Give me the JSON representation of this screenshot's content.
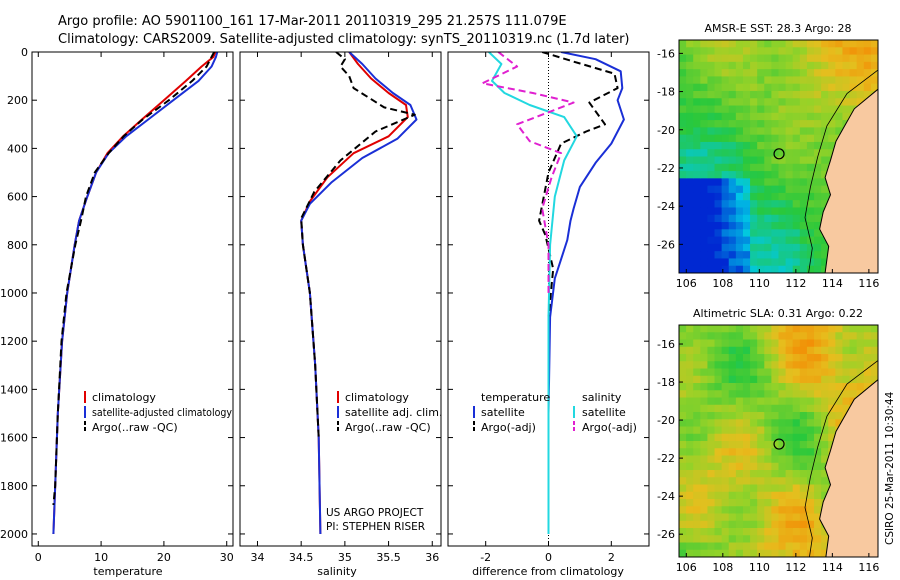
{
  "header": {
    "line1": "Argo profile: AO 5901100_161 17-Mar-2011 20110319_295 21.257S 111.079E",
    "line2": "Climatology: CARS2009. Satellite-adjusted climatology: synTS_20110319.nc (1.7d later)"
  },
  "colors": {
    "climatology": "#e00000",
    "satellite": "#1a2fd6",
    "argo": "#000000",
    "salinity_satellite": "#22d8e0",
    "salinity_argo": "#e020d0"
  },
  "chart_data": [
    {
      "type": "line",
      "xlabel": "temperature",
      "xlim": [
        -1,
        31
      ],
      "xticks": [
        0,
        10,
        20,
        30
      ],
      "ylim": [
        2050,
        0
      ],
      "yticks": [
        0,
        200,
        400,
        600,
        800,
        1000,
        1200,
        1400,
        1600,
        1800,
        2000
      ],
      "legend": [
        "climatology",
        "satellite-adjusted climatology",
        "Argo(..raw -QC)"
      ],
      "series": [
        {
          "name": "climatology",
          "color": "#e00000",
          "dash": false,
          "x": [
            28.2,
            27.9,
            26.0,
            23.5,
            20.0,
            16.5,
            13.5,
            11.0,
            9.2,
            7.8,
            6.5,
            5.8,
            4.6,
            3.8,
            3.1,
            2.7,
            2.4
          ],
          "y": [
            0,
            20,
            60,
            120,
            200,
            280,
            350,
            420,
            500,
            600,
            700,
            800,
            1000,
            1200,
            1500,
            1800,
            2000
          ]
        },
        {
          "name": "satellite-adjusted climatology",
          "color": "#1a2fd6",
          "dash": false,
          "x": [
            28.5,
            28.3,
            27.6,
            25.5,
            21.5,
            17.5,
            14.0,
            11.2,
            9.2,
            7.8,
            6.5,
            5.8,
            4.6,
            3.8,
            3.1,
            2.7,
            2.4
          ],
          "y": [
            0,
            20,
            60,
            120,
            200,
            280,
            350,
            420,
            500,
            600,
            700,
            800,
            1000,
            1200,
            1500,
            1800,
            2000
          ]
        },
        {
          "name": "Argo(..raw -QC)",
          "color": "#000000",
          "dash": true,
          "x": [
            28.0,
            27.6,
            26.8,
            24.5,
            20.8,
            16.6,
            13.6,
            11.2,
            9.0,
            7.6,
            6.8,
            5.9,
            4.5,
            3.7,
            3.1,
            2.7,
            2.4
          ],
          "y": [
            0,
            20,
            60,
            120,
            200,
            280,
            350,
            420,
            500,
            600,
            700,
            800,
            1000,
            1200,
            1500,
            1800,
            1880
          ]
        }
      ]
    },
    {
      "type": "line",
      "xlabel": "salinity",
      "xlim": [
        33.8,
        36.1
      ],
      "xticks": [
        34,
        34.5,
        35,
        35.5,
        36
      ],
      "ylim": [
        2050,
        0
      ],
      "legend": [
        "climatology",
        "satellite adj. clim.",
        "Argo(..raw -QC)"
      ],
      "annotation": [
        "US ARGO PROJECT",
        "PI: STEPHEN RISER"
      ],
      "series": [
        {
          "name": "climatology",
          "color": "#e00000",
          "dash": false,
          "x": [
            35.05,
            35.15,
            35.3,
            35.5,
            35.7,
            35.72,
            35.5,
            35.1,
            34.8,
            34.6,
            34.5,
            34.52,
            34.6,
            34.66,
            34.7,
            34.72
          ],
          "y": [
            0,
            50,
            110,
            170,
            220,
            270,
            350,
            420,
            520,
            620,
            700,
            800,
            1000,
            1300,
            1600,
            2000
          ]
        },
        {
          "name": "satellite adj. clim.",
          "color": "#1a2fd6",
          "dash": false,
          "x": [
            35.05,
            35.2,
            35.35,
            35.55,
            35.75,
            35.82,
            35.6,
            35.2,
            34.85,
            34.6,
            34.5,
            34.52,
            34.6,
            34.66,
            34.7,
            34.72
          ],
          "y": [
            0,
            50,
            110,
            170,
            220,
            280,
            360,
            440,
            540,
            630,
            700,
            800,
            1000,
            1300,
            1600,
            2000
          ]
        },
        {
          "name": "Argo(..raw -QC)",
          "color": "#000000",
          "dash": true,
          "x": [
            34.9,
            35.0,
            34.95,
            35.05,
            35.1,
            35.45,
            35.8,
            35.35,
            34.95,
            34.65,
            34.5,
            34.52,
            34.6,
            34.66,
            34.7
          ],
          "y": [
            0,
            30,
            60,
            100,
            150,
            230,
            260,
            330,
            450,
            580,
            690,
            800,
            1000,
            1300,
            1600
          ]
        }
      ]
    },
    {
      "type": "line",
      "xlabel": "difference from climatology",
      "xlim": [
        -3.2,
        3.2
      ],
      "xticks": [
        -2,
        0,
        2
      ],
      "ylim": [
        2050,
        0
      ],
      "legend_temperature": {
        "heading": "temperature",
        "entries": [
          "satellite",
          "Argo(-adj)"
        ]
      },
      "legend_salinity": {
        "heading": "salinity",
        "entries": [
          "satellite",
          "Argo(-adj)"
        ]
      },
      "series": [
        {
          "name": "temperature satellite",
          "color": "#1a2fd6",
          "dash": false,
          "x": [
            0.4,
            1.5,
            2.3,
            2.35,
            2.2,
            2.4,
            2.0,
            1.5,
            1.0,
            0.8,
            0.7,
            0.6,
            0.4,
            0.2,
            0.05,
            0.0,
            0.0
          ],
          "y": [
            0,
            30,
            80,
            150,
            200,
            280,
            380,
            460,
            560,
            650,
            700,
            780,
            860,
            940,
            1100,
            1500,
            2000
          ]
        },
        {
          "name": "temperature Argo(-adj)",
          "color": "#000000",
          "dash": true,
          "x": [
            -0.2,
            0.8,
            2.1,
            2.2,
            1.3,
            1.8,
            1.2,
            0.4,
            0.0,
            -0.3,
            -0.1,
            0.15,
            0.0,
            0.0
          ],
          "y": [
            0,
            40,
            90,
            150,
            210,
            300,
            330,
            380,
            500,
            700,
            760,
            900,
            1100,
            1880
          ]
        },
        {
          "name": "salinity satellite",
          "color": "#22d8e0",
          "dash": false,
          "x": [
            -1.9,
            -1.5,
            -1.8,
            -1.4,
            -0.6,
            0.5,
            0.9,
            0.5,
            0.2,
            0.05,
            0.0,
            0.0
          ],
          "y": [
            0,
            50,
            120,
            170,
            220,
            270,
            350,
            450,
            600,
            800,
            1100,
            2000
          ]
        },
        {
          "name": "salinity Argo(-adj)",
          "color": "#e020d0",
          "dash": true,
          "x": [
            -1.6,
            -1.0,
            -2.1,
            -0.5,
            0.8,
            -1.0,
            -0.6,
            0.4,
            0.1,
            -0.2,
            0.0,
            0.0
          ],
          "y": [
            0,
            60,
            130,
            170,
            210,
            300,
            370,
            420,
            520,
            650,
            800,
            1000
          ]
        }
      ]
    },
    {
      "type": "heatmap",
      "title": "AMSR-E SST: 28.3  Argo: 28",
      "xlim": [
        105.6,
        116.5
      ],
      "ylim": [
        -27.5,
        -15.3
      ],
      "xticks": [
        106,
        108,
        110,
        112,
        114,
        116
      ],
      "yticks": [
        -16,
        -18,
        -20,
        -22,
        -24,
        -26
      ],
      "marker": {
        "lon": 111.08,
        "lat": -21.26
      }
    },
    {
      "type": "heatmap",
      "title": "Altimetric SLA: 0.31  Argo: 0.22",
      "xlim": [
        105.6,
        116.5
      ],
      "ylim": [
        -27.2,
        -15.0
      ],
      "xticks": [
        106,
        108,
        110,
        112,
        114,
        116
      ],
      "yticks": [
        -16,
        -18,
        -20,
        -22,
        -24,
        -26
      ],
      "marker": {
        "lon": 111.08,
        "lat": -21.26
      }
    }
  ],
  "side_note": "CSIRO 25-Mar-2011 10:30:44"
}
